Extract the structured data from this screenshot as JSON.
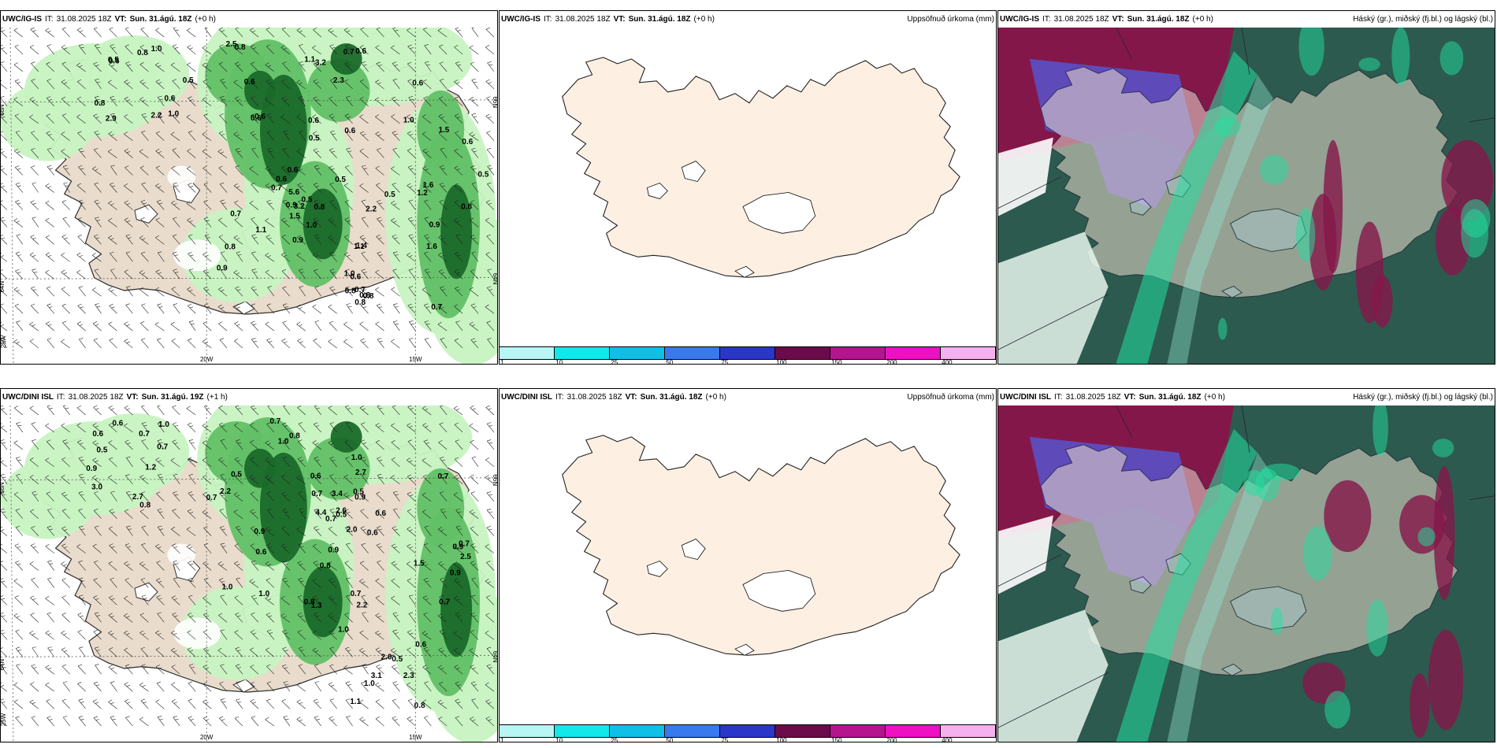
{
  "panels": [
    {
      "id": "p1",
      "model": "UWC/IG-IS",
      "it_label": "IT:",
      "it_value": "31.08.2025 18Z",
      "vt_label": "VT:",
      "vt_value": "Sun. 31.ágú. 18Z",
      "lead": "(+0 h)",
      "right_title": "",
      "lat_labels": [
        "66N",
        "64N",
        "66N",
        "64N"
      ],
      "lon_labels": [
        "25W",
        "20W",
        "15W"
      ],
      "values": [
        "0.8",
        "2.3",
        "0.5",
        "0.6",
        "0.8",
        "0.6",
        "0.6",
        "2.2",
        "0.6",
        "0.7",
        "1.1",
        "1.0",
        "0.5",
        "0.6",
        "1.0",
        "0.8",
        "2.9",
        "3.2",
        "2.5",
        "0.6",
        "0.7",
        "0.6",
        "0.5",
        "0.6",
        "0.9",
        "1.4",
        "1.1",
        "0.8",
        "0.7",
        "0.6",
        "0.5",
        "1.5",
        "0.9",
        "0.6",
        "1.0",
        "0.5",
        "3.2",
        "0.9",
        "5.6",
        "0.8",
        "0.7",
        "1.0",
        "0.5",
        "2.2",
        "0.8",
        "0.6",
        "1.6",
        "0.8",
        "0.9",
        "0.7",
        "0.5",
        "1.6",
        "1.5",
        "1.0",
        "0.8",
        "0.6",
        "0.6",
        "1.2",
        "0.8",
        "1.1",
        "0.8"
      ]
    },
    {
      "id": "p2",
      "model": "UWC/IG-IS",
      "it_label": "IT:",
      "it_value": "31.08.2025 18Z",
      "vt_label": "VT:",
      "vt_value": "Sun. 31.ágú. 18Z",
      "lead": "(+0 h)",
      "right_title": "Uppsöfnuð úrkoma (mm)"
    },
    {
      "id": "p3",
      "model": "UWC/IG-IS",
      "it_label": "IT:",
      "it_value": "31.08.2025 18Z",
      "vt_label": "VT:",
      "vt_value": "Sun. 31.ágú. 18Z",
      "lead": "(+0 h)",
      "right_title": "Háský (gr.), miðský (fj.bl.) og lágský (bl.)"
    },
    {
      "id": "p4",
      "model": "UWC/DINI ISL",
      "it_label": "IT:",
      "it_value": "31.08.2025 18Z",
      "vt_label": "VT:",
      "vt_value": "Sun. 31.ágú. 19Z",
      "lead": "(+1 h)",
      "right_title": "",
      "lat_labels": [
        "66N",
        "64N",
        "66N",
        "64N"
      ],
      "lon_labels": [
        "25W",
        "20W",
        "15W"
      ],
      "values": [
        "1.2",
        "0.7",
        "0.5",
        "0.8",
        "2.7",
        "3.0",
        "0.5",
        "2.7",
        "0.6",
        "2.2",
        "0.6",
        "0.7",
        "0.7",
        "0.5",
        "0.9",
        "0.8",
        "0.6",
        "1.0",
        "0.7",
        "1.0",
        "0.8",
        "1.3",
        "2.2",
        "0.6",
        "0.7",
        "0.6",
        "0.9",
        "2.6",
        "0.9",
        "3.4",
        "0.8",
        "0.7",
        "1.0",
        "0.9",
        "1.0",
        "0.7",
        "0.5",
        "1.0",
        "2.0",
        "4.4",
        "0.6",
        "1.5",
        "0.7",
        "3.1",
        "1.0",
        "0.7",
        "2.0",
        "2.5",
        "0.6",
        "0.9",
        "1.0",
        "0.7",
        "1.1",
        "0.5",
        "0.8",
        "2.3",
        "0.9"
      ]
    },
    {
      "id": "p5",
      "model": "UWC/DINI ISL",
      "it_label": "IT:",
      "it_value": "31.08.2025 18Z",
      "vt_label": "VT:",
      "vt_value": "Sun. 31.ágú. 18Z",
      "lead": "(+0 h)",
      "right_title": "Uppsöfnuð úrkoma (mm)"
    },
    {
      "id": "p6",
      "model": "UWC/DINI ISL",
      "it_label": "IT:",
      "it_value": "31.08.2025 18Z",
      "vt_label": "VT:",
      "vt_value": "Sun. 31.ágú. 18Z",
      "lead": "(+0 h)",
      "right_title": "Háský (gr.), miðský (fj.bl.) og lágský (bl.)"
    }
  ],
  "colorbar": {
    "ticks": [
      "1",
      "10",
      "25",
      "50",
      "75",
      "100",
      "150",
      "200",
      "400"
    ],
    "colors": [
      "#b8f6f6",
      "#12e8ea",
      "#0fc0e6",
      "#3a78ee",
      "#2a36c8",
      "#6c0b4a",
      "#b6148e",
      "#ee10c2",
      "#f6b0ef"
    ]
  },
  "colors": {
    "land": "#e9dccc",
    "land_empty": "#fdf0e3",
    "precip_light": "#c7f3c1",
    "precip_mid": "#62c066",
    "precip_dark": "#1a6a2a",
    "cloud_high": "#2d5a4e",
    "cloud_mid": "#5b4fc2",
    "cloud_low": "#84174a",
    "cloud_edge": "#22e0a0"
  }
}
